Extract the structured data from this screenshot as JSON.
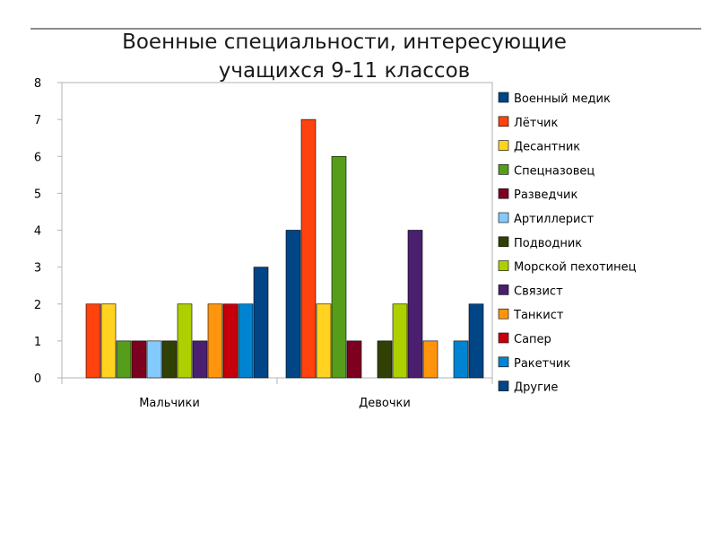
{
  "chart_data": {
    "type": "bar",
    "title_lines": [
      "Военные специальности, интересующие",
      "учащихся 9-11 классов"
    ],
    "categories": [
      "Мальчики",
      "Девочки"
    ],
    "ylim": [
      0,
      8
    ],
    "yticks": [
      0,
      1,
      2,
      3,
      4,
      5,
      6,
      7,
      8
    ],
    "grid": false,
    "legend_position": "right",
    "series": [
      {
        "name": "Военный медик",
        "color": "#004586",
        "values": [
          0,
          4
        ]
      },
      {
        "name": "Лётчик",
        "color": "#ff420e",
        "values": [
          2,
          7
        ]
      },
      {
        "name": "Десантник",
        "color": "#ffd320",
        "values": [
          2,
          2
        ]
      },
      {
        "name": "Спецназовец",
        "color": "#579d1c",
        "values": [
          1,
          6
        ]
      },
      {
        "name": "Разведчик",
        "color": "#7e0021",
        "values": [
          1,
          1
        ]
      },
      {
        "name": "Артиллерист",
        "color": "#83caff",
        "values": [
          1,
          0
        ]
      },
      {
        "name": "Подводник",
        "color": "#314004",
        "values": [
          1,
          1
        ]
      },
      {
        "name": "Морской пехотинец",
        "color": "#aecf00",
        "values": [
          2,
          2
        ]
      },
      {
        "name": "Связист",
        "color": "#4b1f6f",
        "values": [
          1,
          4
        ]
      },
      {
        "name": "Танкист",
        "color": "#ff950e",
        "values": [
          2,
          1
        ]
      },
      {
        "name": "Сапер",
        "color": "#c5000b",
        "values": [
          2,
          0
        ]
      },
      {
        "name": "Ракетчик",
        "color": "#0084d1",
        "values": [
          2,
          1
        ]
      },
      {
        "name": "Другие",
        "color": "#004586",
        "values": [
          3,
          2
        ]
      }
    ]
  }
}
